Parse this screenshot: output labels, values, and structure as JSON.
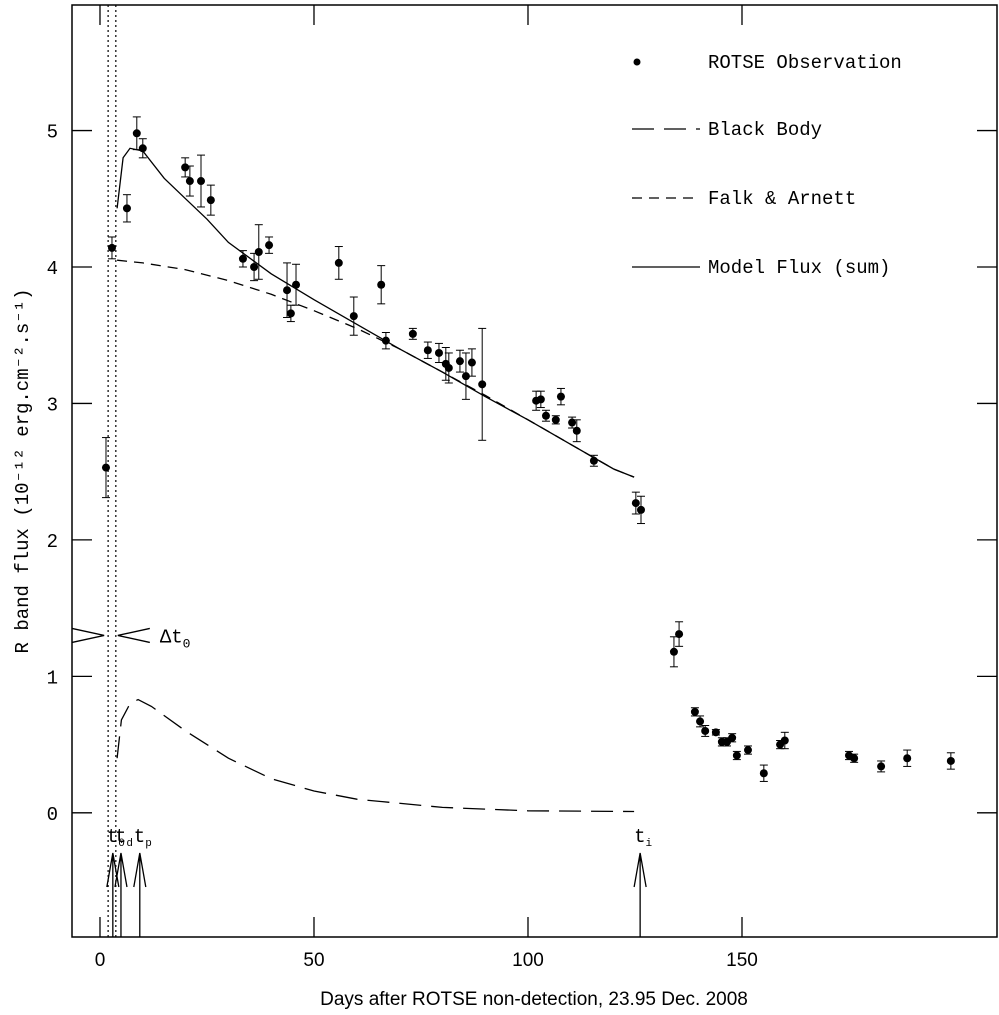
{
  "chart_data": {
    "type": "scatter",
    "xlabel": "Days after ROTSE non-detection, 23.95 Dec. 2008",
    "ylabel": "R band flux (10⁻¹² erg.cm⁻².s⁻¹)",
    "xlim": [
      -6.54,
      209.58
    ],
    "ylim": [
      -0.91,
      5.92
    ],
    "xticks": [
      0,
      50,
      100,
      150
    ],
    "yticks": [
      0,
      1,
      2,
      3,
      4,
      5
    ],
    "series": [
      {
        "name": "ROTSE Observation",
        "style": "points",
        "color": "#000000",
        "x": [
          1.4,
          2.8,
          6.3,
          8.6,
          10,
          19.9,
          21,
          23.6,
          25.9,
          33.4,
          36,
          37.1,
          39.5,
          43.7,
          44.6,
          45.8,
          55.8,
          59.3,
          65.7,
          66.8,
          73.1,
          76.6,
          79.2,
          80.8,
          81.5,
          84.1,
          85.5,
          86.9,
          89.3,
          101.9,
          103,
          104.2,
          106.5,
          107.7,
          110.3,
          111.4,
          115.4,
          125.2,
          126.4,
          134.1,
          135.3,
          139,
          140.2,
          141.4,
          143.9,
          145.3,
          146.5,
          147.7,
          148.8,
          151.4,
          155.1,
          158.9,
          160,
          175,
          176.2,
          182.5,
          188.6,
          198.8
        ],
        "values": [
          2.53,
          4.14,
          4.43,
          4.98,
          4.87,
          4.73,
          4.63,
          4.63,
          4.49,
          4.06,
          4.0,
          4.11,
          4.16,
          3.83,
          3.66,
          3.87,
          4.03,
          3.64,
          3.87,
          3.46,
          3.51,
          3.39,
          3.37,
          3.29,
          3.26,
          3.31,
          3.2,
          3.3,
          3.14,
          3.02,
          3.03,
          2.91,
          2.88,
          3.05,
          2.86,
          2.8,
          2.58,
          2.27,
          2.22,
          1.18,
          1.31,
          0.74,
          0.67,
          0.6,
          0.59,
          0.52,
          0.52,
          0.55,
          0.42,
          0.46,
          0.29,
          0.5,
          0.53,
          0.42,
          0.4,
          0.34,
          0.4,
          0.38
        ],
        "errors": [
          0.22,
          0.08,
          0.1,
          0.12,
          0.07,
          0.07,
          0.11,
          0.19,
          0.11,
          0.06,
          0.1,
          0.2,
          0.06,
          0.2,
          0.06,
          0.15,
          0.12,
          0.14,
          0.14,
          0.06,
          0.04,
          0.06,
          0.07,
          0.12,
          0.11,
          0.08,
          0.17,
          0.1,
          0.41,
          0.07,
          0.06,
          0.04,
          0.03,
          0.06,
          0.04,
          0.08,
          0.04,
          0.08,
          0.1,
          0.11,
          0.09,
          0.03,
          0.04,
          0.04,
          0.02,
          0.03,
          0.03,
          0.03,
          0.03,
          0.03,
          0.06,
          0.03,
          0.06,
          0.03,
          0.03,
          0.04,
          0.06,
          0.06
        ]
      },
      {
        "name": "Black Body",
        "style": "longdash",
        "color": "#000000",
        "x": [
          4,
          5,
          7,
          8.9,
          12,
          20,
          30,
          40,
          50,
          60,
          80,
          100,
          124.8
        ],
        "values": [
          0.4,
          0.68,
          0.8,
          0.83,
          0.78,
          0.6,
          0.4,
          0.25,
          0.16,
          0.1,
          0.04,
          0.015,
          0.01
        ]
      },
      {
        "name": "Falk & Arnett",
        "style": "dash",
        "color": "#000000",
        "x": [
          4,
          10,
          20,
          30,
          40,
          50,
          60,
          70,
          80,
          90,
          100,
          110,
          120,
          124.8
        ],
        "values": [
          4.05,
          4.03,
          3.98,
          3.9,
          3.8,
          3.68,
          3.55,
          3.4,
          3.23,
          3.06,
          2.88,
          2.7,
          2.52,
          2.46
        ]
      },
      {
        "name": "Model Flux (sum)",
        "style": "solid",
        "color": "#000000",
        "x": [
          4,
          5.4,
          7,
          10,
          15,
          20,
          25,
          30,
          40,
          50,
          60,
          70,
          80,
          90,
          100,
          110,
          120,
          124.8
        ],
        "values": [
          4.43,
          4.8,
          4.87,
          4.85,
          4.65,
          4.5,
          4.35,
          4.18,
          3.95,
          3.76,
          3.58,
          3.4,
          3.23,
          3.05,
          2.88,
          2.7,
          2.52,
          2.46
        ]
      }
    ],
    "vlines": [
      1.9,
      3.7
    ],
    "interval": {
      "y": 1.3,
      "text": "Δt",
      "sub": "0"
    },
    "markers": [
      {
        "x": 3,
        "text": "t",
        "sub": "0"
      },
      {
        "x": 4.9,
        "text": "t",
        "sub": "d"
      },
      {
        "x": 9.3,
        "text": "t",
        "sub": "p"
      },
      {
        "x": 126.2,
        "text": "t",
        "sub": "i"
      }
    ]
  }
}
